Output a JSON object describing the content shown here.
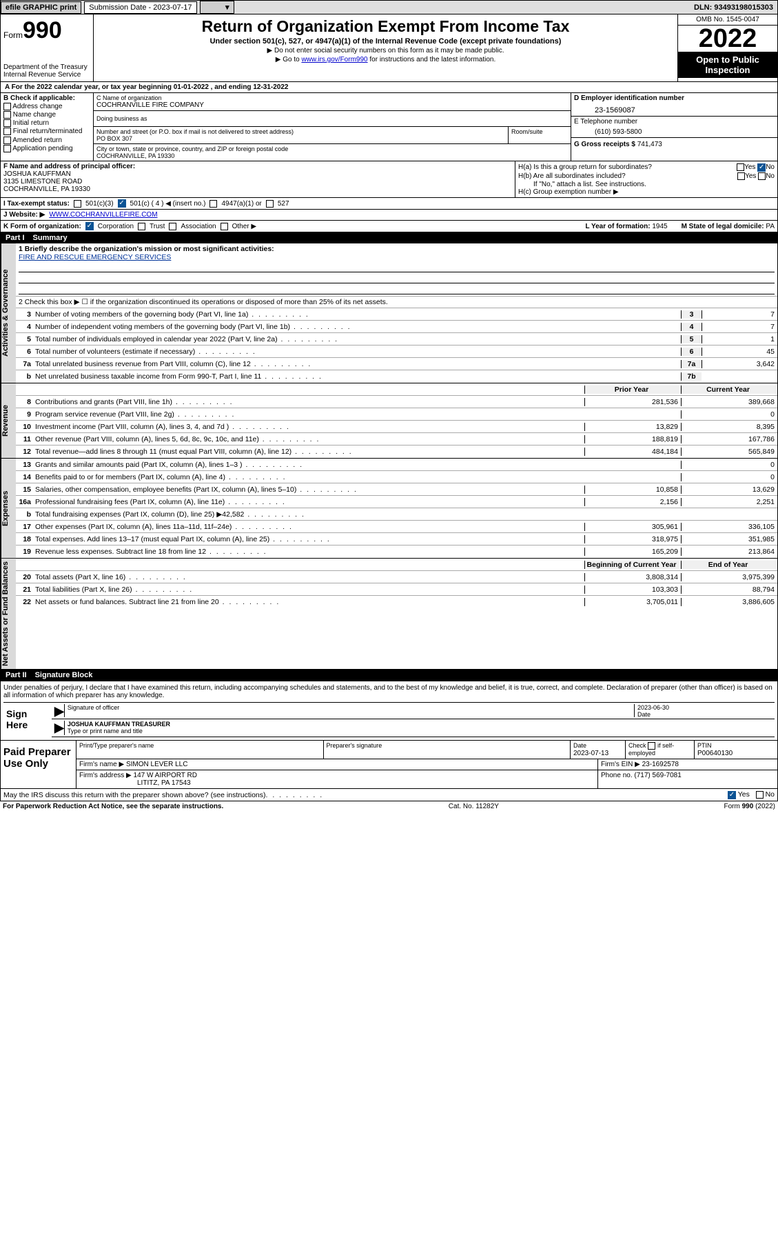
{
  "topbar": {
    "efile": "efile GRAPHIC print",
    "submission_label": "Submission Date - 2023-07-17",
    "dln": "DLN: 93493198015303"
  },
  "header": {
    "form_label": "Form",
    "form_number": "990",
    "dept": "Department of the Treasury",
    "irs": "Internal Revenue Service",
    "title": "Return of Organization Exempt From Income Tax",
    "subtitle": "Under section 501(c), 527, or 4947(a)(1) of the Internal Revenue Code (except private foundations)",
    "note1": "▶ Do not enter social security numbers on this form as it may be made public.",
    "note2_pre": "▶ Go to ",
    "note2_link": "www.irs.gov/Form990",
    "note2_post": " for instructions and the latest information.",
    "omb": "OMB No. 1545-0047",
    "year": "2022",
    "open_public": "Open to Public Inspection"
  },
  "period": "A For the 2022 calendar year, or tax year beginning 01-01-2022    , and ending 12-31-2022",
  "box_b": {
    "label": "B Check if applicable:",
    "items": [
      "Address change",
      "Name change",
      "Initial return",
      "Final return/terminated",
      "Amended return",
      "Application pending"
    ]
  },
  "box_c": {
    "name_label": "C Name of organization",
    "name": "COCHRANVILLE FIRE COMPANY",
    "dba_label": "Doing business as",
    "street_label": "Number and street (or P.O. box if mail is not delivered to street address)",
    "street": "PO BOX 307",
    "room_label": "Room/suite",
    "city_label": "City or town, state or province, country, and ZIP or foreign postal code",
    "city": "COCHRANVILLE, PA  19330"
  },
  "box_d": {
    "label": "D Employer identification number",
    "value": "23-1569087"
  },
  "box_e": {
    "label": "E Telephone number",
    "value": "(610) 593-5800"
  },
  "box_g": {
    "label": "G Gross receipts $",
    "value": "741,473"
  },
  "box_f": {
    "label": "F Name and address of principal officer:",
    "name": "JOSHUA KAUFFMAN",
    "addr1": "3135 LIMESTONE ROAD",
    "addr2": "COCHRANVILLE, PA  19330"
  },
  "box_h": {
    "a": "H(a)  Is this a group return for subordinates?",
    "a_no": "No",
    "b": "H(b)  Are all subordinates included?",
    "b_note": "If \"No,\" attach a list. See instructions.",
    "c": "H(c)  Group exemption number ▶"
  },
  "box_i": {
    "label": "I   Tax-exempt status:",
    "c4": "501(c) ( 4 ) ◀ (insert no.)"
  },
  "box_j": {
    "label": "J   Website: ▶",
    "value": "WWW.COCHRANVILLEFIRE.COM"
  },
  "box_k": {
    "label": "K Form of organization:",
    "corp": "Corporation",
    "trust": "Trust",
    "assoc": "Association",
    "other": "Other ▶"
  },
  "box_l": {
    "label": "L Year of formation:",
    "value": "1945"
  },
  "box_m": {
    "label": "M State of legal domicile:",
    "value": "PA"
  },
  "part1": {
    "num": "Part I",
    "title": "Summary"
  },
  "summary": {
    "vlabels": [
      "Activities & Governance",
      "Revenue",
      "Expenses",
      "Net Assets or Fund Balances"
    ],
    "mission_label": "1   Briefly describe the organization's mission or most significant activities:",
    "mission": "FIRE AND RESCUE EMERGENCY SERVICES",
    "line2": "2   Check this box ▶ ☐  if the organization discontinued its operations or disposed of more than 25% of its net assets.",
    "lines_single": [
      {
        "n": "3",
        "desc": "Number of voting members of the governing body (Part VI, line 1a)",
        "box": "3",
        "val": "7"
      },
      {
        "n": "4",
        "desc": "Number of independent voting members of the governing body (Part VI, line 1b)",
        "box": "4",
        "val": "7"
      },
      {
        "n": "5",
        "desc": "Total number of individuals employed in calendar year 2022 (Part V, line 2a)",
        "box": "5",
        "val": "1"
      },
      {
        "n": "6",
        "desc": "Total number of volunteers (estimate if necessary)",
        "box": "6",
        "val": "45"
      },
      {
        "n": "7a",
        "desc": "Total unrelated business revenue from Part VIII, column (C), line 12",
        "box": "7a",
        "val": "3,642"
      },
      {
        "n": "b",
        "desc": "Net unrelated business taxable income from Form 990-T, Part I, line 11",
        "box": "7b",
        "val": ""
      }
    ],
    "prior_label": "Prior Year",
    "current_label": "Current Year",
    "rev_lines": [
      {
        "n": "8",
        "desc": "Contributions and grants (Part VIII, line 1h)",
        "prior": "281,536",
        "current": "389,668"
      },
      {
        "n": "9",
        "desc": "Program service revenue (Part VIII, line 2g)",
        "prior": "",
        "current": "0"
      },
      {
        "n": "10",
        "desc": "Investment income (Part VIII, column (A), lines 3, 4, and 7d )",
        "prior": "13,829",
        "current": "8,395"
      },
      {
        "n": "11",
        "desc": "Other revenue (Part VIII, column (A), lines 5, 6d, 8c, 9c, 10c, and 11e)",
        "prior": "188,819",
        "current": "167,786"
      },
      {
        "n": "12",
        "desc": "Total revenue—add lines 8 through 11 (must equal Part VIII, column (A), line 12)",
        "prior": "484,184",
        "current": "565,849"
      }
    ],
    "exp_lines": [
      {
        "n": "13",
        "desc": "Grants and similar amounts paid (Part IX, column (A), lines 1–3 )",
        "prior": "",
        "current": "0"
      },
      {
        "n": "14",
        "desc": "Benefits paid to or for members (Part IX, column (A), line 4)",
        "prior": "",
        "current": "0"
      },
      {
        "n": "15",
        "desc": "Salaries, other compensation, employee benefits (Part IX, column (A), lines 5–10)",
        "prior": "10,858",
        "current": "13,629"
      },
      {
        "n": "16a",
        "desc": "Professional fundraising fees (Part IX, column (A), line 11e)",
        "prior": "2,156",
        "current": "2,251"
      },
      {
        "n": "b",
        "desc": "Total fundraising expenses (Part IX, column (D), line 25) ▶42,582",
        "prior": "",
        "current": ""
      },
      {
        "n": "17",
        "desc": "Other expenses (Part IX, column (A), lines 11a–11d, 11f–24e)",
        "prior": "305,961",
        "current": "336,105"
      },
      {
        "n": "18",
        "desc": "Total expenses. Add lines 13–17 (must equal Part IX, column (A), line 25)",
        "prior": "318,975",
        "current": "351,985"
      },
      {
        "n": "19",
        "desc": "Revenue less expenses. Subtract line 18 from line 12",
        "prior": "165,209",
        "current": "213,864"
      }
    ],
    "begin_label": "Beginning of Current Year",
    "end_label": "End of Year",
    "net_lines": [
      {
        "n": "20",
        "desc": "Total assets (Part X, line 16)",
        "prior": "3,808,314",
        "current": "3,975,399"
      },
      {
        "n": "21",
        "desc": "Total liabilities (Part X, line 26)",
        "prior": "103,303",
        "current": "88,794"
      },
      {
        "n": "22",
        "desc": "Net assets or fund balances. Subtract line 21 from line 20",
        "prior": "3,705,011",
        "current": "3,886,605"
      }
    ]
  },
  "part2": {
    "num": "Part II",
    "title": "Signature Block"
  },
  "sig": {
    "jurat": "Under penalties of perjury, I declare that I have examined this return, including accompanying schedules and statements, and to the best of my knowledge and belief, it is true, correct, and complete. Declaration of preparer (other than officer) is based on all information of which preparer has any knowledge.",
    "sign_here": "Sign Here",
    "sig_officer_label": "Signature of officer",
    "date": "2023-06-30",
    "date_label": "Date",
    "name_title": "JOSHUA KAUFFMAN  TREASURER",
    "name_title_label": "Type or print name and title"
  },
  "prep": {
    "title": "Paid Preparer Use Only",
    "h1": "Print/Type preparer's name",
    "h2": "Preparer's signature",
    "h3": "Date",
    "h3v": "2023-07-13",
    "h4a": "Check",
    "h4b": "if self-employed",
    "h5": "PTIN",
    "h5v": "P00640130",
    "firm_name_label": "Firm's name    ▶",
    "firm_name": "SIMON LEVER LLC",
    "firm_ein_label": "Firm's EIN ▶",
    "firm_ein": "23-1692578",
    "firm_addr_label": "Firm's address ▶",
    "firm_addr1": "147 W AIRPORT RD",
    "firm_addr2": "LITITZ, PA  17543",
    "phone_label": "Phone no.",
    "phone": "(717) 569-7081"
  },
  "irs_discuss": {
    "text": "May the IRS discuss this return with the preparer shown above? (see instructions)",
    "yes": "Yes",
    "no": "No"
  },
  "footer": {
    "l": "For Paperwork Reduction Act Notice, see the separate instructions.",
    "c": "Cat. No. 11282Y",
    "r": "Form 990 (2022)"
  }
}
